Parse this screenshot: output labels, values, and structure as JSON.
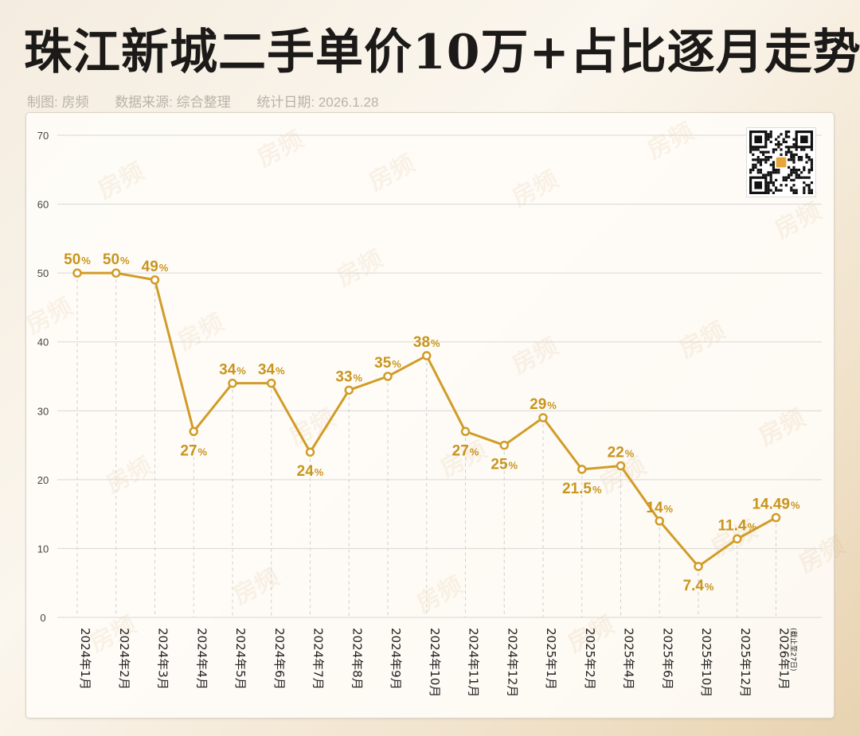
{
  "header": {
    "title": "珠江新城二手单价10万+占比逐月走势",
    "credits": [
      "制图: 房频",
      "数据来源: 综合整理",
      "统计日期: 2026.1.28"
    ]
  },
  "watermark": "房频",
  "colors": {
    "line": "#d19c27",
    "label": "#c8951e",
    "grid": "#cccccc"
  },
  "chart_data": {
    "type": "line",
    "title": "珠江新城二手单价10万+占比逐月走势",
    "xlabel": "",
    "ylabel": "",
    "ylim": [
      0,
      70
    ],
    "yticks": [
      0,
      10,
      20,
      30,
      40,
      50,
      60,
      70
    ],
    "grid": true,
    "x": [
      "2024年1月",
      "2024年2月",
      "2024年3月",
      "2024年4月",
      "2024年5月",
      "2024年6月",
      "2024年7月",
      "2024年8月",
      "2024年9月",
      "2024年10月",
      "2024年11月",
      "2024年12月",
      "2025年1月",
      "2025年2月",
      "2025年4月",
      "2025年6月",
      "2025年10月",
      "2025年12月",
      "2026年1月"
    ],
    "x_notes": [
      "",
      "",
      "",
      "",
      "",
      "",
      "",
      "",
      "",
      "",
      "",
      "",
      "",
      "",
      "",
      "",
      "",
      "",
      "(截止至27日)"
    ],
    "values": [
      50,
      50,
      49,
      27,
      34,
      34,
      24,
      33,
      35,
      38,
      27,
      25,
      29,
      21.5,
      22,
      14,
      7.4,
      11.4,
      14.49
    ],
    "labels": [
      "50",
      "50",
      "49",
      "27",
      "34",
      "34",
      "24",
      "33",
      "35",
      "38",
      "27",
      "25",
      "29",
      "21.5",
      "22",
      "14",
      "7.4",
      "11.4",
      "14.49"
    ],
    "label_pos": [
      "above",
      "above",
      "above",
      "below",
      "above",
      "above",
      "below",
      "above",
      "above",
      "above",
      "below",
      "below",
      "above",
      "below",
      "above",
      "above",
      "below",
      "above",
      "above"
    ],
    "unit_suffix": "%"
  }
}
